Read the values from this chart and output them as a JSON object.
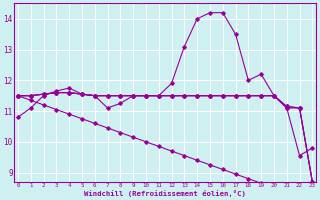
{
  "xlabel": "Windchill (Refroidissement éolien,°C)",
  "x": [
    0,
    1,
    2,
    3,
    4,
    5,
    6,
    7,
    8,
    9,
    10,
    11,
    12,
    13,
    14,
    15,
    16,
    17,
    18,
    19,
    20,
    21,
    22,
    23
  ],
  "line1": [
    10.8,
    11.1,
    11.5,
    11.65,
    11.75,
    11.55,
    11.5,
    11.1,
    11.25,
    11.5,
    11.5,
    11.5,
    11.9,
    13.1,
    14.0,
    14.2,
    14.2,
    13.5,
    12.0,
    12.2,
    11.5,
    11.1,
    9.55,
    9.8
  ],
  "line_flat1": [
    11.5,
    11.5,
    11.55,
    11.6,
    11.6,
    11.55,
    11.5,
    11.5,
    11.5,
    11.5,
    11.5,
    11.5,
    11.5,
    11.5,
    11.5,
    11.5,
    11.5,
    11.5,
    11.5,
    11.5,
    11.5,
    11.1,
    11.1,
    8.7
  ],
  "line_flat2": [
    11.5,
    11.5,
    11.55,
    11.6,
    11.6,
    11.55,
    11.5,
    11.5,
    11.5,
    11.5,
    11.5,
    11.5,
    11.5,
    11.5,
    11.5,
    11.5,
    11.5,
    11.5,
    11.5,
    11.5,
    11.5,
    11.15,
    11.1,
    8.7
  ],
  "line_flat3": [
    11.5,
    11.5,
    11.55,
    11.6,
    11.6,
    11.55,
    11.5,
    11.5,
    11.5,
    11.5,
    11.5,
    11.5,
    11.5,
    11.5,
    11.5,
    11.5,
    11.5,
    11.5,
    11.5,
    11.5,
    11.5,
    11.15,
    11.1,
    8.7
  ],
  "line_diag": [
    11.5,
    11.35,
    11.2,
    11.05,
    10.9,
    10.75,
    10.6,
    10.45,
    10.3,
    10.15,
    10.0,
    9.85,
    9.7,
    9.55,
    9.4,
    9.25,
    9.1,
    8.95,
    8.8,
    8.65,
    8.5,
    null,
    null,
    null
  ],
  "line_color": "#990099",
  "bg_color": "#cff0f0",
  "grid_color": "#ffffff",
  "axis_color": "#990099",
  "ylim": [
    8.7,
    14.5
  ],
  "xlim": [
    -0.3,
    23.3
  ],
  "yticks": [
    9,
    10,
    11,
    12,
    13,
    14
  ],
  "xticks": [
    0,
    1,
    2,
    3,
    4,
    5,
    6,
    7,
    8,
    9,
    10,
    11,
    12,
    13,
    14,
    15,
    16,
    17,
    18,
    19,
    20,
    21,
    22,
    23
  ]
}
